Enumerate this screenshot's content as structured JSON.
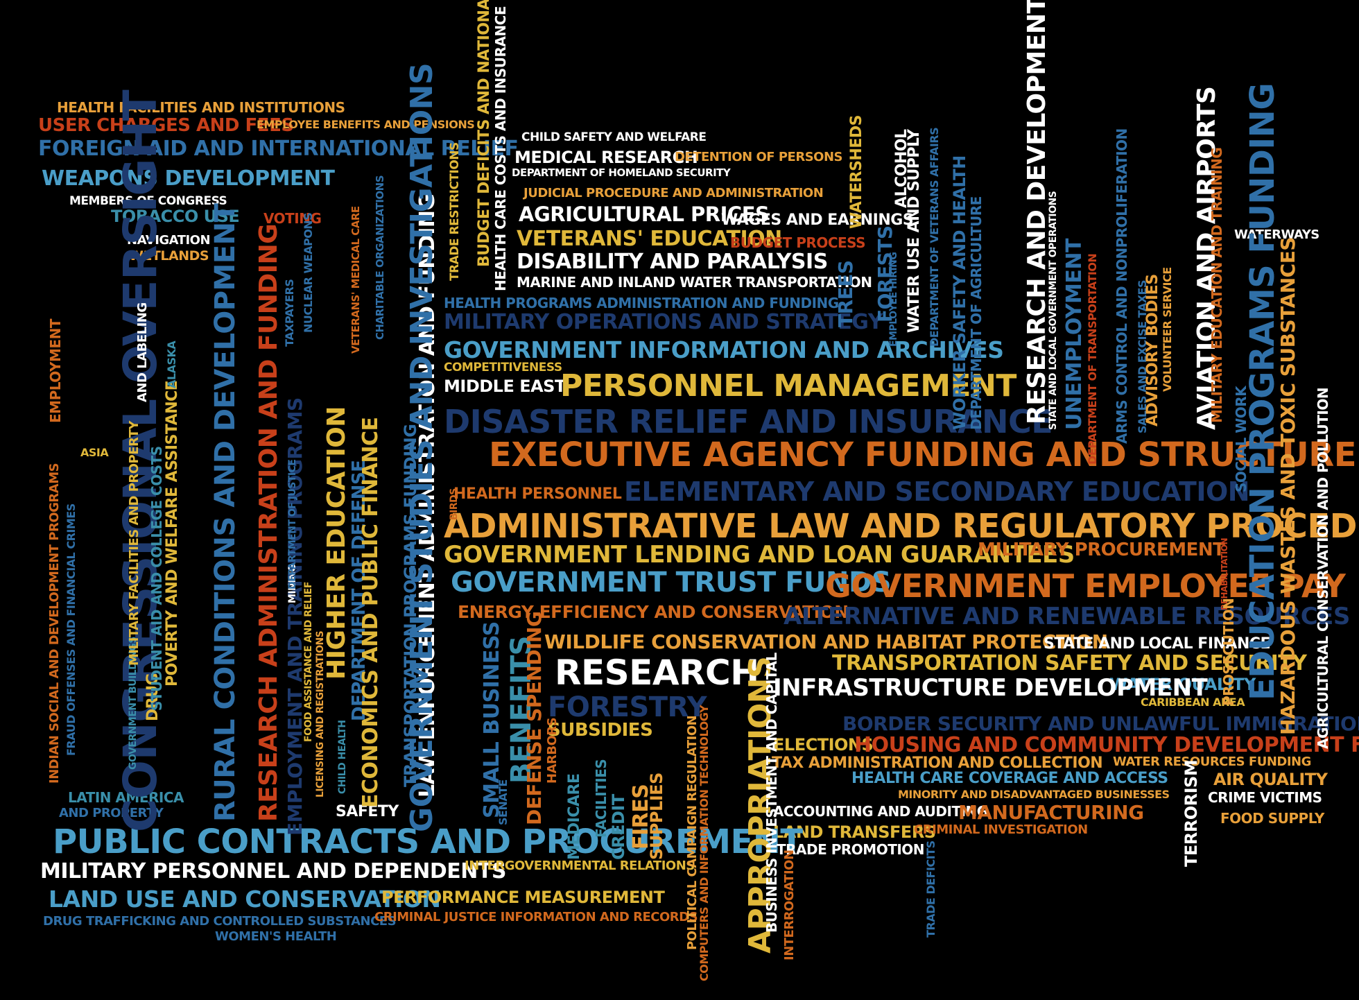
{
  "colors": {
    "background": "#000000",
    "orange": "#E8A03A",
    "dark_orange": "#D2691E",
    "red_orange": "#C8401A",
    "gold": "#E0B83A",
    "light_blue": "#4A9EC8",
    "teal": "#3A8FAA",
    "steel_blue": "#3070A8",
    "navy": "#1E3A6E",
    "white": "#FFFFFF"
  },
  "words": [
    {
      "text": "HEALTH FACILITIES AND INSTITUTIONS",
      "color": "orange"
    },
    {
      "text": "USER CHARGES AND FEES",
      "color": "red_orange"
    },
    {
      "text": "EMPLOYEE BENEFITS AND PENSIONS",
      "color": "orange"
    },
    {
      "text": "FOREIGN AID AND INTERNATIONAL RELIEF",
      "color": "steel_blue"
    },
    {
      "text": "WEAPONS DEVELOPMENT",
      "color": "light_blue"
    },
    {
      "text": "MEMBERS OF CONGRESS",
      "color": "white"
    },
    {
      "text": "TOBACCO USE",
      "color": "teal"
    },
    {
      "text": "VOTING",
      "color": "red_orange"
    },
    {
      "text": "NAVIGATION",
      "color": "white"
    },
    {
      "text": "WETLANDS",
      "color": "orange"
    },
    {
      "text": "CHILD SAFETY AND WELFARE",
      "color": "white"
    },
    {
      "text": "MEDICAL RESEARCH",
      "color": "white"
    },
    {
      "text": "DETENTION OF PERSONS",
      "color": "orange"
    },
    {
      "text": "DEPARTMENT OF HOMELAND SECURITY",
      "color": "white"
    },
    {
      "text": "JUDICIAL PROCEDURE AND ADMINISTRATION",
      "color": "orange"
    },
    {
      "text": "AGRICULTURAL PRICES",
      "color": "white"
    },
    {
      "text": "WAGES AND EARNINGS",
      "color": "white"
    },
    {
      "text": "VETERANS' EDUCATION",
      "color": "gold"
    },
    {
      "text": "BUDGET PROCESS",
      "color": "red_orange"
    },
    {
      "text": "DISABILITY AND PARALYSIS",
      "color": "white"
    },
    {
      "text": "MARINE AND INLAND WATER TRANSPORTATION",
      "color": "white"
    },
    {
      "text": "HEALTH PROGRAMS ADMINISTRATION AND FUNDING",
      "color": "steel_blue"
    },
    {
      "text": "MILITARY OPERATIONS AND STRATEGY",
      "color": "navy"
    },
    {
      "text": "GOVERNMENT INFORMATION AND ARCHIVES",
      "color": "light_blue"
    },
    {
      "text": "COMPETITIVENESS",
      "color": "gold"
    },
    {
      "text": "MIDDLE EAST",
      "color": "white"
    },
    {
      "text": "PERSONNEL MANAGEMENT",
      "color": "gold"
    },
    {
      "text": "DISASTER RELIEF AND INSURANCE",
      "color": "navy"
    },
    {
      "text": "EXECUTIVE AGENCY FUNDING AND STRUCTURE",
      "color": "dark_orange"
    },
    {
      "text": "ELEMENTARY AND SECONDARY EDUCATION",
      "color": "navy"
    },
    {
      "text": "HEALTH PERSONNEL",
      "color": "dark_orange"
    },
    {
      "text": "ADMINISTRATIVE LAW AND REGULATORY PROCEDURES",
      "color": "orange"
    },
    {
      "text": "GOVERNMENT LENDING AND LOAN GUARANTEES",
      "color": "gold"
    },
    {
      "text": "MILITARY PROCUREMENT",
      "color": "dark_orange"
    },
    {
      "text": "GOVERNMENT TRUST FUNDS",
      "color": "light_blue"
    },
    {
      "text": "GOVERNMENT EMPLOYEE PAY",
      "color": "dark_orange"
    },
    {
      "text": "ENERGY EFFICIENCY AND CONSERVATION",
      "color": "dark_orange"
    },
    {
      "text": "ALTERNATIVE AND RENEWABLE RESOURCES",
      "color": "navy"
    },
    {
      "text": "WILDLIFE CONSERVATION AND HABITAT PROTECTION",
      "color": "orange"
    },
    {
      "text": "STATE AND LOCAL FINANCE",
      "color": "white"
    },
    {
      "text": "RESEARCH",
      "color": "white"
    },
    {
      "text": "TRANSPORTATION SAFETY AND SECURITY",
      "color": "gold"
    },
    {
      "text": "WATER QUALITY",
      "color": "light_blue"
    },
    {
      "text": "INFRASTRUCTURE DEVELOPMENT",
      "color": "white"
    },
    {
      "text": "CARIBBEAN AREA",
      "color": "gold"
    },
    {
      "text": "FORESTRY",
      "color": "navy"
    },
    {
      "text": "BORDER SECURITY AND UNLAWFUL IMMIGRATION",
      "color": "navy"
    },
    {
      "text": "SUBSIDIES",
      "color": "gold"
    },
    {
      "text": "ELECTIONS",
      "color": "gold"
    },
    {
      "text": "HOUSING AND COMMUNITY DEVELOPMENT FUNDING",
      "color": "red_orange"
    },
    {
      "text": "TAX ADMINISTRATION AND COLLECTION",
      "color": "orange"
    },
    {
      "text": "WATER RESOURCES FUNDING",
      "color": "orange"
    },
    {
      "text": "HEALTH CARE COVERAGE AND ACCESS",
      "color": "light_blue"
    },
    {
      "text": "AIR QUALITY",
      "color": "orange"
    },
    {
      "text": "MINORITY AND DISADVANTAGED BUSINESSES",
      "color": "orange"
    },
    {
      "text": "CRIME VICTIMS",
      "color": "white"
    },
    {
      "text": "LATIN AMERICA",
      "color": "teal"
    },
    {
      "text": "AND PROPERTY",
      "color": "steel_blue"
    },
    {
      "text": "SAFETY",
      "color": "white"
    },
    {
      "text": "ACCOUNTING AND AUDITING",
      "color": "white"
    },
    {
      "text": "MANUFACTURING",
      "color": "dark_orange"
    },
    {
      "text": "FOOD SUPPLY",
      "color": "orange"
    },
    {
      "text": "LAND TRANSFERS",
      "color": "gold"
    },
    {
      "text": "CRIMINAL INVESTIGATION",
      "color": "dark_orange"
    },
    {
      "text": "PUBLIC CONTRACTS AND PROCUREMENT",
      "color": "light_blue"
    },
    {
      "text": "TRADE PROMOTION",
      "color": "white"
    },
    {
      "text": "MILITARY PERSONNEL AND DEPENDENTS",
      "color": "white"
    },
    {
      "text": "INTERGOVERNMENTAL RELATIONS",
      "color": "gold"
    },
    {
      "text": "LAND USE AND CONSERVATION",
      "color": "light_blue"
    },
    {
      "text": "PERFORMANCE MEASUREMENT",
      "color": "gold"
    },
    {
      "text": "DRUG TRAFFICKING AND CONTROLLED SUBSTANCES",
      "color": "steel_blue"
    },
    {
      "text": "CRIMINAL JUSTICE INFORMATION AND RECORDS",
      "color": "dark_orange"
    },
    {
      "text": "WOMEN'S HEALTH",
      "color": "steel_blue"
    },
    {
      "text": "WATERWAYS",
      "color": "white"
    },
    {
      "text": "ASIA",
      "color": "gold"
    },
    {
      "text": "CONGRESSIONAL OVERSIGHT",
      "color": "navy"
    },
    {
      "text": "RURAL CONDITIONS AND DEVELOPMENT",
      "color": "steel_blue"
    },
    {
      "text": "RESEARCH ADMINISTRATION AND FUNDING",
      "color": "red_orange"
    },
    {
      "text": "EMPLOYMENT AND TRAINING PROGRAMS",
      "color": "navy"
    },
    {
      "text": "HIGHER EDUCATION",
      "color": "gold"
    },
    {
      "text": "DEPARTMENT OF DEFENSE",
      "color": "steel_blue"
    },
    {
      "text": "ECONOMICS AND PUBLIC FINANCE",
      "color": "gold"
    },
    {
      "text": "TRANSPORTATION PROGRAMS FUNDING",
      "color": "steel_blue"
    },
    {
      "text": "LAW ENFORCEMENT ADMINISTRATION AND FUNDING",
      "color": "white"
    },
    {
      "text": "GOVERNMENT STUDIES AND INVESTIGATIONS",
      "color": "steel_blue"
    },
    {
      "text": "SMALL BUSINESS",
      "color": "steel_blue"
    },
    {
      "text": "BENEFITS",
      "color": "teal"
    },
    {
      "text": "DEFENSE SPENDING",
      "color": "dark_orange"
    },
    {
      "text": "APPROPRIATIONS",
      "color": "gold"
    },
    {
      "text": "BUSINESS INVESTMENT AND CAPITAL",
      "color": "white"
    },
    {
      "text": "RESEARCH AND DEVELOPMENT",
      "color": "white"
    },
    {
      "text": "AVIATION AND AIRPORTS",
      "color": "white"
    },
    {
      "text": "EDUCATION PROGRAMS FUNDING",
      "color": "steel_blue"
    },
    {
      "text": "HAZARDOUS WASTES AND TOXIC SUBSTANCES",
      "color": "orange"
    },
    {
      "text": "AGRICULTURAL CONSERVATION AND POLLUTION",
      "color": "white"
    },
    {
      "text": "BUDGET DEFICITS AND NATIONAL DEBT",
      "color": "gold"
    },
    {
      "text": "HEALTH CARE COSTS AND INSURANCE",
      "color": "white"
    },
    {
      "text": "TRADE RESTRICTIONS",
      "color": "gold"
    },
    {
      "text": "WATERSHEDS",
      "color": "gold"
    },
    {
      "text": "ALCOHOL",
      "color": "white"
    },
    {
      "text": "FORESTS",
      "color": "steel_blue"
    },
    {
      "text": "TREES",
      "color": "steel_blue"
    },
    {
      "text": "WATER USE AND SUPPLY",
      "color": "white"
    },
    {
      "text": "WORKER SAFETY AND HEALTH",
      "color": "steel_blue"
    },
    {
      "text": "DEPARTMENT OF AGRICULTURE",
      "color": "steel_blue"
    },
    {
      "text": "DEPARTMENT OF VETERANS AFFAIRS",
      "color": "steel_blue"
    },
    {
      "text": "STATE AND LOCAL GOVERNMENT OPERATIONS",
      "color": "white"
    },
    {
      "text": "UNEMPLOYMENT",
      "color": "steel_blue"
    },
    {
      "text": "DEPARTMENT OF TRANSPORTATION",
      "color": "red_orange"
    },
    {
      "text": "ARMS CONTROL AND NONPROLIFERATION",
      "color": "steel_blue"
    },
    {
      "text": "SALES AND EXCISE TAXES",
      "color": "steel_blue"
    },
    {
      "text": "ADVISORY BODIES",
      "color": "orange"
    },
    {
      "text": "VOLUNTEER SERVICE",
      "color": "orange"
    },
    {
      "text": "MILITARY EDUCATION AND TRAINING",
      "color": "dark_orange"
    },
    {
      "text": "REHABILITATION",
      "color": "red_orange"
    },
    {
      "text": "SOCIAL WORK",
      "color": "steel_blue"
    },
    {
      "text": "PROSECUTION",
      "color": "orange"
    },
    {
      "text": "TERRORISM",
      "color": "white"
    },
    {
      "text": "TRADE DEFICITS",
      "color": "steel_blue"
    },
    {
      "text": "INTERROGATION",
      "color": "dark_orange"
    },
    {
      "text": "POLITICAL CAMPAIGN REGULATION",
      "color": "orange"
    },
    {
      "text": "COMPUTERS AND INFORMATION TECHNOLOGY",
      "color": "dark_orange"
    },
    {
      "text": "MEDICARE",
      "color": "teal"
    },
    {
      "text": "FACILITIES",
      "color": "teal"
    },
    {
      "text": "CREDIT",
      "color": "teal"
    },
    {
      "text": "FIRES",
      "color": "orange"
    },
    {
      "text": "SUPPLIES",
      "color": "orange"
    },
    {
      "text": "HARBORS",
      "color": "dark_orange"
    },
    {
      "text": "SENATE",
      "color": "steel_blue"
    },
    {
      "text": "BIRDS",
      "color": "dark_orange"
    },
    {
      "text": "INDIAN SOCIAL AND DEVELOPMENT PROGRAMS",
      "color": "dark_orange"
    },
    {
      "text": "FRAUD OFFENSES AND FINANCIAL CRIMES",
      "color": "steel_blue"
    },
    {
      "text": "EMPLOYMENT",
      "color": "dark_orange"
    },
    {
      "text": "GOVERNMENT BUILDINGS",
      "color": "teal"
    },
    {
      "text": "MILITARY FACILITIES AND PROPERTY",
      "color": "gold"
    },
    {
      "text": "DRUG",
      "color": "gold"
    },
    {
      "text": "STUDENT AID AND COLLEGE COSTS",
      "color": "teal"
    },
    {
      "text": "POVERTY AND WELFARE ASSISTANCE",
      "color": "gold"
    },
    {
      "text": "AND LABELING",
      "color": "white"
    },
    {
      "text": "ALASKA",
      "color": "teal"
    },
    {
      "text": "MINING",
      "color": "white"
    },
    {
      "text": "DEPARTMENT OF JUSTICE",
      "color": "steel_blue"
    },
    {
      "text": "TAXPAYERS",
      "color": "steel_blue"
    },
    {
      "text": "NUCLEAR WEAPONS",
      "color": "steel_blue"
    },
    {
      "text": "VETERANS' MEDICAL CARE",
      "color": "dark_orange"
    },
    {
      "text": "CHARITABLE ORGANIZATIONS",
      "color": "steel_blue"
    },
    {
      "text": "FOOD ASSISTANCE AND RELIEF",
      "color": "gold"
    },
    {
      "text": "LICENSING AND REGISTRATIONS",
      "color": "orange"
    },
    {
      "text": "CHILD HEALTH",
      "color": "teal"
    },
    {
      "text": "EMPLOYEE HIRING",
      "color": "steel_blue"
    }
  ]
}
